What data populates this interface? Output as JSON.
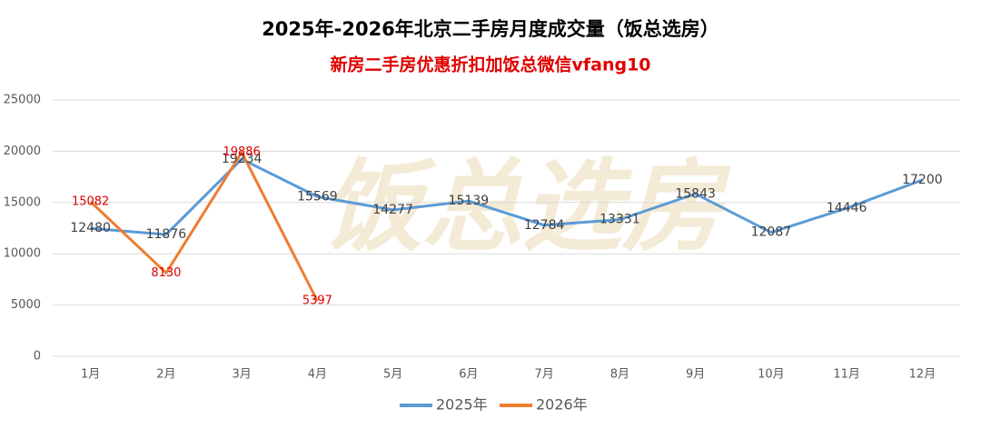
{
  "chart_data": {
    "type": "line",
    "title": "2025年-2026年北京二手房月度成交量（饭总选房）",
    "subtitle": "新房二手房优惠折扣加饭总微信vfang10",
    "watermark": "饭总选房",
    "categories": [
      "1月",
      "2月",
      "3月",
      "4月",
      "5月",
      "6月",
      "7月",
      "8月",
      "9月",
      "10月",
      "11月",
      "12月"
    ],
    "series": [
      {
        "name": "2025年",
        "color": "#5b9bd5",
        "values": [
          12480,
          11876,
          19234,
          15569,
          14277,
          15139,
          12784,
          13331,
          15843,
          12087,
          14446,
          17200
        ]
      },
      {
        "name": "2026年",
        "color": "#ed7d31",
        "values": [
          15082,
          8130,
          19886,
          5397,
          null,
          null,
          null,
          null,
          null,
          null,
          null,
          null
        ]
      }
    ],
    "ylim": [
      0,
      25000
    ],
    "yticks": [
      0,
      5000,
      10000,
      15000,
      20000,
      25000
    ],
    "grid": true,
    "legend": "bottom"
  }
}
